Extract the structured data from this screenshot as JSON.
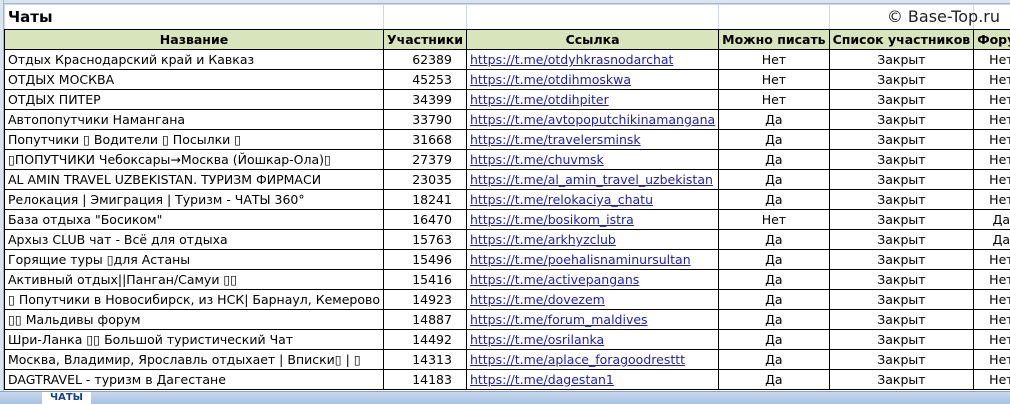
{
  "sheet_title": "Чаты",
  "headers": [
    "Название",
    "Участники",
    "Ссылка",
    "Можно писать",
    "Список участников",
    "Форум"
  ],
  "rows": [
    [
      "Отдых Краснодарский край и Кавказ",
      "62389",
      "https://t.me/otdyhkrasnodarchat",
      "Нет",
      "Закрыт",
      "Нет"
    ],
    [
      "ОТДЫХ МОСКВА",
      "45253",
      "https://t.me/otdihmoskwa",
      "Нет",
      "Закрыт",
      "Нет"
    ],
    [
      "ОТДЫХ ПИТЕР",
      "34399",
      "https://t.me/otdihpiter",
      "Нет",
      "Закрыт",
      "Нет"
    ],
    [
      "Автопопутчики Намангана",
      "33790",
      "https://t.me/avtopoputchikinamangana",
      "Да",
      "Закрыт",
      "Нет"
    ],
    [
      "Попутчики ▯ Водители ▯ Посылки ▯",
      "31668",
      "https://t.me/travelersminsk",
      "Да",
      "Закрыт",
      "Нет"
    ],
    [
      "▯ПОПУТЧИКИ Чебоксары→Москва (Йошкар-Ола)▯",
      "27379",
      "https://t.me/chuvmsk",
      "Да",
      "Закрыт",
      "Нет"
    ],
    [
      "AL AMIN TRAVEL UZBEKISTAN. ТУРИЗМ ФИРМАСИ",
      "23035",
      "https://t.me/al_amin_travel_uzbekistan",
      "Да",
      "Закрыт",
      "Нет"
    ],
    [
      "Релокация | Эмиграция | Туризм - ЧАТЫ 360°",
      "18241",
      "https://t.me/relokaciya_chatu",
      "Да",
      "Закрыт",
      "Нет"
    ],
    [
      "База отдыха \"Босиком\"",
      "16470",
      "https://t.me/bosikom_istra",
      "Нет",
      "Закрыт",
      "Да"
    ],
    [
      "Архыз CLUB чат - Всё для отдыха",
      "15763",
      "https://t.me/arkhyzclub",
      "Да",
      "Закрыт",
      "Да"
    ],
    [
      "Горящие туры ▯для Астаны",
      "15496",
      "https://t.me/poehalisnaminursultan",
      "Да",
      "Закрыт",
      "Нет"
    ],
    [
      "Активный отдых||Панган/Самуи ▯▯",
      "15416",
      "https://t.me/activepangans",
      "Да",
      "Закрыт",
      "Нет"
    ],
    [
      "▯ Попутчики в Новосибирск, из НСК| Барнаул, Кемерово",
      "14923",
      "https://t.me/dovezem",
      "Да",
      "Закрыт",
      "Нет"
    ],
    [
      "▯▯ Мальдивы форум",
      "14887",
      "https://t.me/forum_maldives",
      "Да",
      "Закрыт",
      "Нет"
    ],
    [
      "Шри-Ланка ▯▯ Большой туристический Чат",
      "14492",
      "https://t.me/osrilanka",
      "Да",
      "Закрыт",
      "Нет"
    ],
    [
      "Москва, Владимир, Ярославль отдыхает | Вписки▯ | ▯",
      "14313",
      "https://t.me/aplace_foragoodresttt",
      "Да",
      "Закрыт",
      "Нет"
    ],
    [
      "DAGTRAVEL - туризм в Дагестане",
      "14183",
      "https://t.me/dagestan1",
      "Да",
      "Закрыт",
      "Нет"
    ]
  ],
  "sheet_tab": "ЧАТЫ",
  "watermark": "© Base-Top.ru"
}
